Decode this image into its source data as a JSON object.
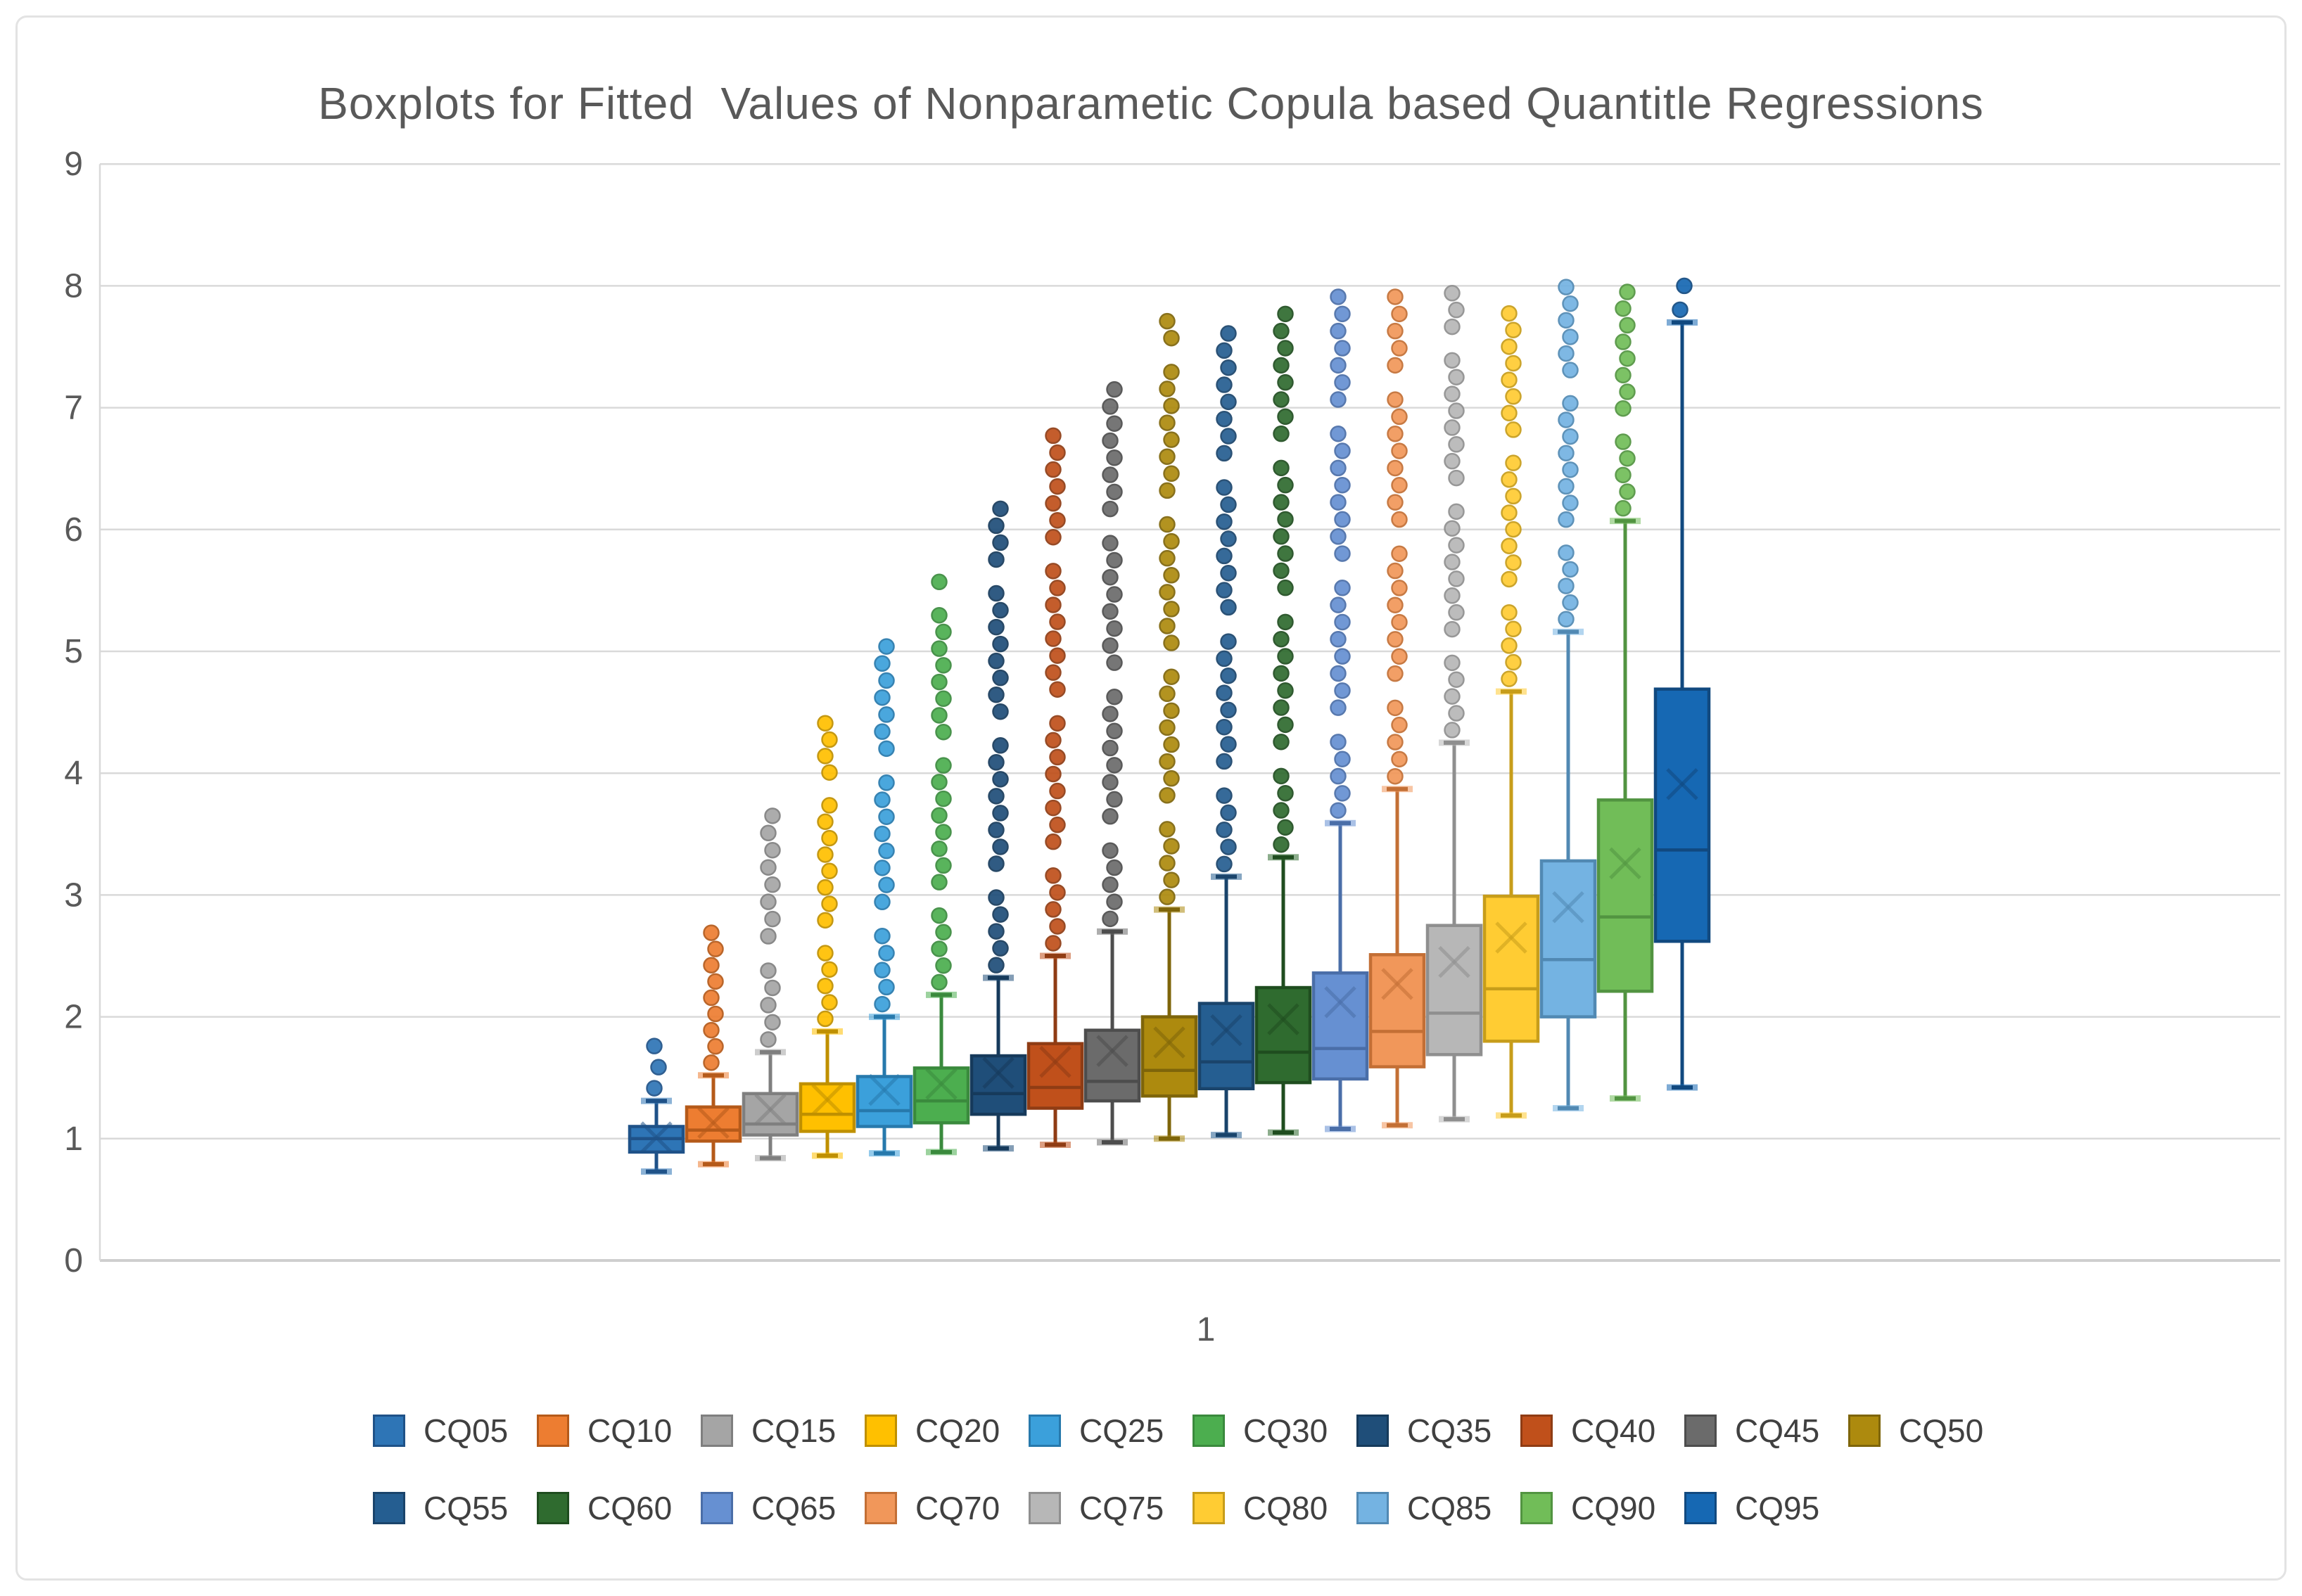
{
  "chart_data": {
    "type": "boxplot",
    "title": "Boxplots for Fitted  Values of Nonparametic Copula based Quantitle Regressions",
    "categories": [
      "1"
    ],
    "xlabel": "",
    "ylabel": "",
    "y_axis": {
      "min": 0,
      "max": 9,
      "step": 1,
      "tick_labels": [
        "0",
        "1",
        "2",
        "3",
        "4",
        "5",
        "6",
        "7",
        "8",
        "9"
      ]
    },
    "grid": true,
    "legend_position": "bottom",
    "colors": {
      "gridline": "#d9d9d9",
      "axis_line": "#cfcfcf",
      "axis_text": "#595959",
      "legend_text": "#404040",
      "background": "#ffffff",
      "frame_border": "#e3e3e3"
    },
    "series": [
      {
        "name": "CQ05",
        "fill": "#2E75B6",
        "stroke": "#1F5288",
        "whisker_low": 0.73,
        "q1": 0.89,
        "median": 1.0,
        "mean": 1.01,
        "q3": 1.1,
        "whisker_high": 1.31,
        "outlier_max": 1.76
      },
      {
        "name": "CQ10",
        "fill": "#ED7D31",
        "stroke": "#B55A1A",
        "whisker_low": 0.79,
        "q1": 0.98,
        "median": 1.07,
        "mean": 1.13,
        "q3": 1.26,
        "whisker_high": 1.52,
        "outlier_max": 2.69
      },
      {
        "name": "CQ15",
        "fill": "#A5A5A5",
        "stroke": "#7F7F7F",
        "whisker_low": 0.84,
        "q1": 1.03,
        "median": 1.12,
        "mean": 1.24,
        "q3": 1.37,
        "whisker_high": 1.71,
        "outlier_max": 3.65
      },
      {
        "name": "CQ20",
        "fill": "#FFC000",
        "stroke": "#BF9000",
        "whisker_low": 0.86,
        "q1": 1.06,
        "median": 1.2,
        "mean": 1.32,
        "q3": 1.45,
        "whisker_high": 1.88,
        "outlier_max": 4.41
      },
      {
        "name": "CQ25",
        "fill": "#3BA0DB",
        "stroke": "#2779AC",
        "whisker_low": 0.88,
        "q1": 1.1,
        "median": 1.23,
        "mean": 1.4,
        "q3": 1.51,
        "whisker_high": 2.0,
        "outlier_max": 5.04
      },
      {
        "name": "CQ30",
        "fill": "#4CAE4F",
        "stroke": "#3A8A3D",
        "whisker_low": 0.89,
        "q1": 1.13,
        "median": 1.31,
        "mean": 1.45,
        "q3": 1.58,
        "whisker_high": 2.18,
        "outlier_max": 5.57
      },
      {
        "name": "CQ35",
        "fill": "#1F4E79",
        "stroke": "#163A5B",
        "whisker_low": 0.92,
        "q1": 1.2,
        "median": 1.37,
        "mean": 1.54,
        "q3": 1.68,
        "whisker_high": 2.32,
        "outlier_max": 6.17
      },
      {
        "name": "CQ40",
        "fill": "#C0501B",
        "stroke": "#8F3C14",
        "whisker_low": 0.95,
        "q1": 1.25,
        "median": 1.42,
        "mean": 1.63,
        "q3": 1.78,
        "whisker_high": 2.5,
        "outlier_max": 6.77
      },
      {
        "name": "CQ45",
        "fill": "#6B6B6B",
        "stroke": "#4D4D4D",
        "whisker_low": 0.97,
        "q1": 1.31,
        "median": 1.47,
        "mean": 1.72,
        "q3": 1.89,
        "whisker_high": 2.7,
        "outlier_max": 7.29
      },
      {
        "name": "CQ50",
        "fill": "#AD8A0E",
        "stroke": "#7E650A",
        "whisker_low": 1.0,
        "q1": 1.35,
        "median": 1.56,
        "mean": 1.79,
        "q3": 2.0,
        "whisker_high": 2.88,
        "outlier_max": 7.71
      },
      {
        "name": "CQ55",
        "fill": "#255E91",
        "stroke": "#1A446B",
        "whisker_low": 1.03,
        "q1": 1.41,
        "median": 1.63,
        "mean": 1.89,
        "q3": 2.11,
        "whisker_high": 3.15,
        "outlier_max": 7.75
      },
      {
        "name": "CQ60",
        "fill": "#2F6B2F",
        "stroke": "#1F4D1F",
        "whisker_low": 1.05,
        "q1": 1.46,
        "median": 1.71,
        "mean": 1.98,
        "q3": 2.24,
        "whisker_high": 3.31,
        "outlier_max": 7.91
      },
      {
        "name": "CQ65",
        "fill": "#6690D2",
        "stroke": "#4A6EA8",
        "whisker_low": 1.08,
        "q1": 1.49,
        "median": 1.74,
        "mean": 2.12,
        "q3": 2.36,
        "whisker_high": 3.59,
        "outlier_max": 7.91
      },
      {
        "name": "CQ70",
        "fill": "#F1975A",
        "stroke": "#C36F35",
        "whisker_low": 1.11,
        "q1": 1.59,
        "median": 1.88,
        "mean": 2.27,
        "q3": 2.51,
        "whisker_high": 3.87,
        "outlier_max": 7.91
      },
      {
        "name": "CQ75",
        "fill": "#B7B7B7",
        "stroke": "#8F8F8F",
        "whisker_low": 1.16,
        "q1": 1.69,
        "median": 2.03,
        "mean": 2.45,
        "q3": 2.75,
        "whisker_high": 4.25,
        "outlier_max": 7.94
      },
      {
        "name": "CQ80",
        "fill": "#FFCC33",
        "stroke": "#C79D1A",
        "whisker_low": 1.19,
        "q1": 1.8,
        "median": 2.23,
        "mean": 2.65,
        "q3": 2.99,
        "whisker_high": 4.67,
        "outlier_max": 7.91
      },
      {
        "name": "CQ85",
        "fill": "#74B3E2",
        "stroke": "#5189B3",
        "whisker_low": 1.25,
        "q1": 2.0,
        "median": 2.47,
        "mean": 2.9,
        "q3": 3.28,
        "whisker_high": 5.16,
        "outlier_max": 7.99
      },
      {
        "name": "CQ90",
        "fill": "#71BD58",
        "stroke": "#529441",
        "whisker_low": 1.33,
        "q1": 2.21,
        "median": 2.82,
        "mean": 3.26,
        "q3": 3.78,
        "whisker_high": 6.07,
        "outlier_max": 7.95
      },
      {
        "name": "CQ95",
        "fill": "#1668B3",
        "stroke": "#11497F",
        "whisker_low": 1.42,
        "q1": 2.62,
        "median": 3.37,
        "mean": 3.91,
        "q3": 4.69,
        "whisker_high": 7.7,
        "outlier_max": 8.0
      }
    ]
  }
}
